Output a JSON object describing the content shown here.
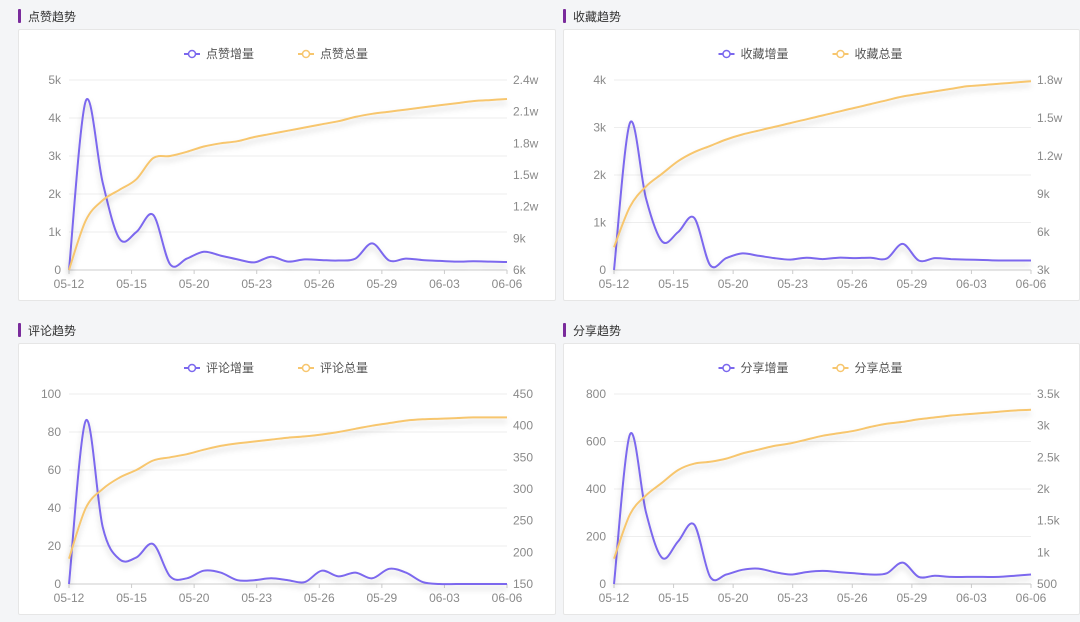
{
  "colors": {
    "accent": "#7a2b9c",
    "increment": "#7b68ee",
    "total": "#f7c66e",
    "grid": "#eeeeee",
    "axis": "#cccccc"
  },
  "panels": [
    {
      "title": "点赞趋势"
    },
    {
      "title": "收藏趋势"
    },
    {
      "title": "评论趋势"
    },
    {
      "title": "分享趋势"
    }
  ],
  "chart_data": [
    {
      "type": "line",
      "title": "点赞趋势",
      "x_ticks": [
        "05-12",
        "05-15",
        "05-20",
        "05-23",
        "05-26",
        "05-29",
        "06-03",
        "06-06"
      ],
      "x_range": [
        0,
        26
      ],
      "left_axis": {
        "ticks": [
          "0",
          "1k",
          "2k",
          "3k",
          "4k",
          "5k"
        ],
        "range": [
          0,
          5000
        ]
      },
      "right_axis": {
        "ticks": [
          "6k",
          "9k",
          "1.2w",
          "1.5w",
          "1.8w",
          "2.1w",
          "2.4w"
        ],
        "range": [
          6000,
          24000
        ]
      },
      "series": [
        {
          "name": "点赞增量",
          "axis": "left",
          "x": [
            0,
            1,
            2,
            3,
            4,
            5,
            6,
            7,
            8,
            9,
            10,
            11,
            12,
            13,
            14,
            15,
            16,
            17,
            18,
            19,
            20,
            21,
            22,
            23,
            24,
            25,
            26
          ],
          "values": [
            0,
            4450,
            2300,
            820,
            1000,
            1450,
            150,
            300,
            480,
            380,
            280,
            200,
            350,
            220,
            280,
            260,
            250,
            300,
            700,
            250,
            300,
            260,
            240,
            220,
            230,
            220,
            210
          ]
        },
        {
          "name": "点赞总量",
          "axis": "right",
          "x": [
            0,
            1,
            2,
            3,
            4,
            5,
            6,
            7,
            8,
            9,
            10,
            11,
            12,
            13,
            14,
            15,
            16,
            17,
            18,
            19,
            20,
            21,
            22,
            23,
            24,
            25,
            26
          ],
          "values": [
            6000,
            10700,
            12600,
            13600,
            14600,
            16600,
            16800,
            17200,
            17700,
            18000,
            18200,
            18600,
            18900,
            19200,
            19500,
            19800,
            20100,
            20500,
            20800,
            21000,
            21200,
            21400,
            21600,
            21800,
            22000,
            22100,
            22200
          ]
        }
      ]
    },
    {
      "type": "line",
      "title": "收藏趋势",
      "x_ticks": [
        "05-12",
        "05-15",
        "05-20",
        "05-23",
        "05-26",
        "05-29",
        "06-03",
        "06-06"
      ],
      "x_range": [
        0,
        26
      ],
      "left_axis": {
        "ticks": [
          "0",
          "1k",
          "2k",
          "3k",
          "4k"
        ],
        "range": [
          0,
          4000
        ]
      },
      "right_axis": {
        "ticks": [
          "3k",
          "6k",
          "9k",
          "1.2w",
          "1.5w",
          "1.8w"
        ],
        "range": [
          3000,
          18000
        ]
      },
      "series": [
        {
          "name": "收藏增量",
          "axis": "left",
          "x": [
            0,
            1,
            2,
            3,
            4,
            5,
            6,
            7,
            8,
            9,
            10,
            11,
            12,
            13,
            14,
            15,
            16,
            17,
            18,
            19,
            20,
            21,
            22,
            23,
            24,
            25,
            26
          ],
          "values": [
            0,
            3100,
            1500,
            600,
            800,
            1100,
            100,
            250,
            350,
            300,
            250,
            220,
            260,
            230,
            260,
            250,
            260,
            240,
            550,
            200,
            250,
            230,
            220,
            210,
            200,
            200,
            200
          ]
        },
        {
          "name": "收藏总量",
          "axis": "right",
          "x": [
            0,
            1,
            2,
            3,
            4,
            5,
            6,
            7,
            8,
            9,
            10,
            11,
            12,
            13,
            14,
            15,
            16,
            17,
            18,
            19,
            20,
            21,
            22,
            23,
            24,
            25,
            26
          ],
          "values": [
            4800,
            8000,
            9600,
            10600,
            11600,
            12300,
            12800,
            13300,
            13700,
            14000,
            14300,
            14600,
            14900,
            15200,
            15500,
            15800,
            16100,
            16400,
            16700,
            16900,
            17100,
            17300,
            17500,
            17600,
            17700,
            17800,
            17900
          ]
        }
      ]
    },
    {
      "type": "line",
      "title": "评论趋势",
      "x_ticks": [
        "05-12",
        "05-15",
        "05-20",
        "05-23",
        "05-26",
        "05-29",
        "06-03",
        "06-06"
      ],
      "x_range": [
        0,
        26
      ],
      "left_axis": {
        "ticks": [
          "0",
          "20",
          "40",
          "60",
          "80",
          "100"
        ],
        "range": [
          0,
          100
        ]
      },
      "right_axis": {
        "ticks": [
          "150",
          "200",
          "250",
          "300",
          "350",
          "400",
          "450"
        ],
        "range": [
          150,
          450
        ]
      },
      "series": [
        {
          "name": "评论增量",
          "axis": "left",
          "x": [
            0,
            1,
            2,
            3,
            4,
            5,
            6,
            7,
            8,
            9,
            10,
            11,
            12,
            13,
            14,
            15,
            16,
            17,
            18,
            19,
            20,
            21,
            22,
            23,
            24,
            25,
            26
          ],
          "values": [
            0,
            86,
            30,
            13,
            14,
            21,
            4,
            3,
            7,
            6,
            2,
            2,
            3,
            2,
            1,
            7,
            4,
            6,
            3,
            8,
            6,
            1,
            0,
            0,
            0,
            0,
            0
          ]
        },
        {
          "name": "评论总量",
          "axis": "right",
          "x": [
            0,
            1,
            2,
            3,
            4,
            5,
            6,
            7,
            8,
            9,
            10,
            11,
            12,
            13,
            14,
            15,
            16,
            17,
            18,
            19,
            20,
            21,
            22,
            23,
            24,
            25,
            26
          ],
          "values": [
            190,
            270,
            300,
            318,
            330,
            345,
            350,
            355,
            362,
            368,
            372,
            375,
            378,
            381,
            383,
            386,
            390,
            395,
            400,
            404,
            408,
            410,
            411,
            412,
            413,
            413,
            413
          ]
        }
      ]
    },
    {
      "type": "line",
      "title": "分享趋势",
      "x_ticks": [
        "05-12",
        "05-15",
        "05-20",
        "05-23",
        "05-26",
        "05-29",
        "06-03",
        "06-06"
      ],
      "x_range": [
        0,
        26
      ],
      "left_axis": {
        "ticks": [
          "0",
          "200",
          "400",
          "600",
          "800"
        ],
        "range": [
          0,
          800
        ]
      },
      "right_axis": {
        "ticks": [
          "500",
          "1k",
          "1.5k",
          "2k",
          "2.5k",
          "3k",
          "3.5k"
        ],
        "range": [
          500,
          3500
        ]
      },
      "series": [
        {
          "name": "分享增量",
          "axis": "left",
          "x": [
            0,
            1,
            2,
            3,
            4,
            5,
            6,
            7,
            8,
            9,
            10,
            11,
            12,
            13,
            14,
            15,
            16,
            17,
            18,
            19,
            20,
            21,
            22,
            23,
            24,
            25,
            26
          ],
          "values": [
            0,
            630,
            300,
            110,
            180,
            250,
            30,
            40,
            60,
            65,
            50,
            40,
            50,
            55,
            50,
            45,
            40,
            45,
            90,
            30,
            35,
            30,
            30,
            30,
            30,
            35,
            40
          ]
        },
        {
          "name": "分享总量",
          "axis": "right",
          "x": [
            0,
            1,
            2,
            3,
            4,
            5,
            6,
            7,
            8,
            9,
            10,
            11,
            12,
            13,
            14,
            15,
            16,
            17,
            18,
            19,
            20,
            21,
            22,
            23,
            24,
            25,
            26
          ],
          "values": [
            900,
            1600,
            1900,
            2100,
            2300,
            2400,
            2430,
            2480,
            2560,
            2620,
            2680,
            2720,
            2780,
            2840,
            2880,
            2920,
            2980,
            3030,
            3060,
            3100,
            3130,
            3160,
            3180,
            3200,
            3220,
            3240,
            3250
          ]
        }
      ]
    }
  ]
}
